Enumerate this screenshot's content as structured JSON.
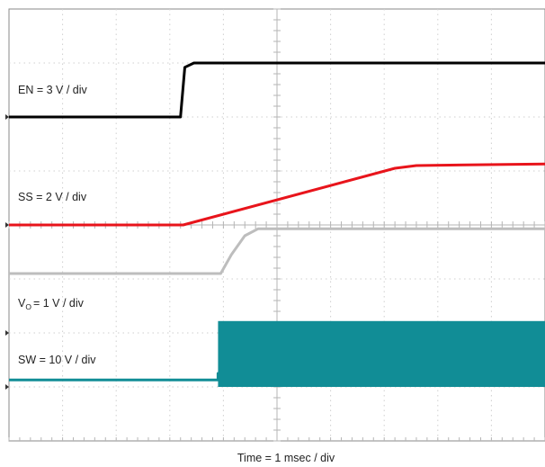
{
  "chart_data": {
    "type": "line",
    "title": "",
    "xlabel": "Time = 1 msec / div",
    "ylabel": "",
    "x_unit": "div",
    "xlim": [
      0,
      10
    ],
    "ylim": [
      0,
      8
    ],
    "grid": true,
    "legend": "none",
    "labels": {
      "en": "EN = 3 V / div",
      "ss": "SS = 2 V / div",
      "vo_prefix": "V",
      "vo_sub": "O",
      "vo_suffix": "= 1 V / div",
      "sw": "SW = 10 V / div"
    },
    "series": [
      {
        "name": "EN = 3 V / div",
        "color": "#000000",
        "x": [
          0,
          3.2,
          3.28,
          3.45,
          10
        ],
        "y": [
          6.0,
          6.0,
          6.92,
          7.0,
          7.0
        ]
      },
      {
        "name": "SS = 2 V / div",
        "color": "#e8141b",
        "x": [
          0,
          3.25,
          7.2,
          7.6,
          10
        ],
        "y": [
          4.0,
          4.0,
          5.05,
          5.1,
          5.13
        ]
      },
      {
        "name": "Vo = 1 V / div",
        "color": "#bdbdbd",
        "x": [
          0,
          3.95,
          4.15,
          4.4,
          4.65,
          10
        ],
        "y": [
          3.1,
          3.1,
          3.45,
          3.8,
          3.93,
          3.93
        ]
      },
      {
        "name": "SW = 10 V / div",
        "color": "#118d96",
        "x": [
          0,
          3.9,
          3.9,
          10
        ],
        "y": [
          1.13,
          1.13,
          1.25,
          1.25
        ],
        "switching_band": {
          "x_start": 3.9,
          "x_end": 10,
          "y_low": 1.0,
          "y_high": 2.22
        }
      }
    ],
    "reference_markers_y": [
      6.0,
      4.0,
      2.0,
      1.0
    ]
  }
}
